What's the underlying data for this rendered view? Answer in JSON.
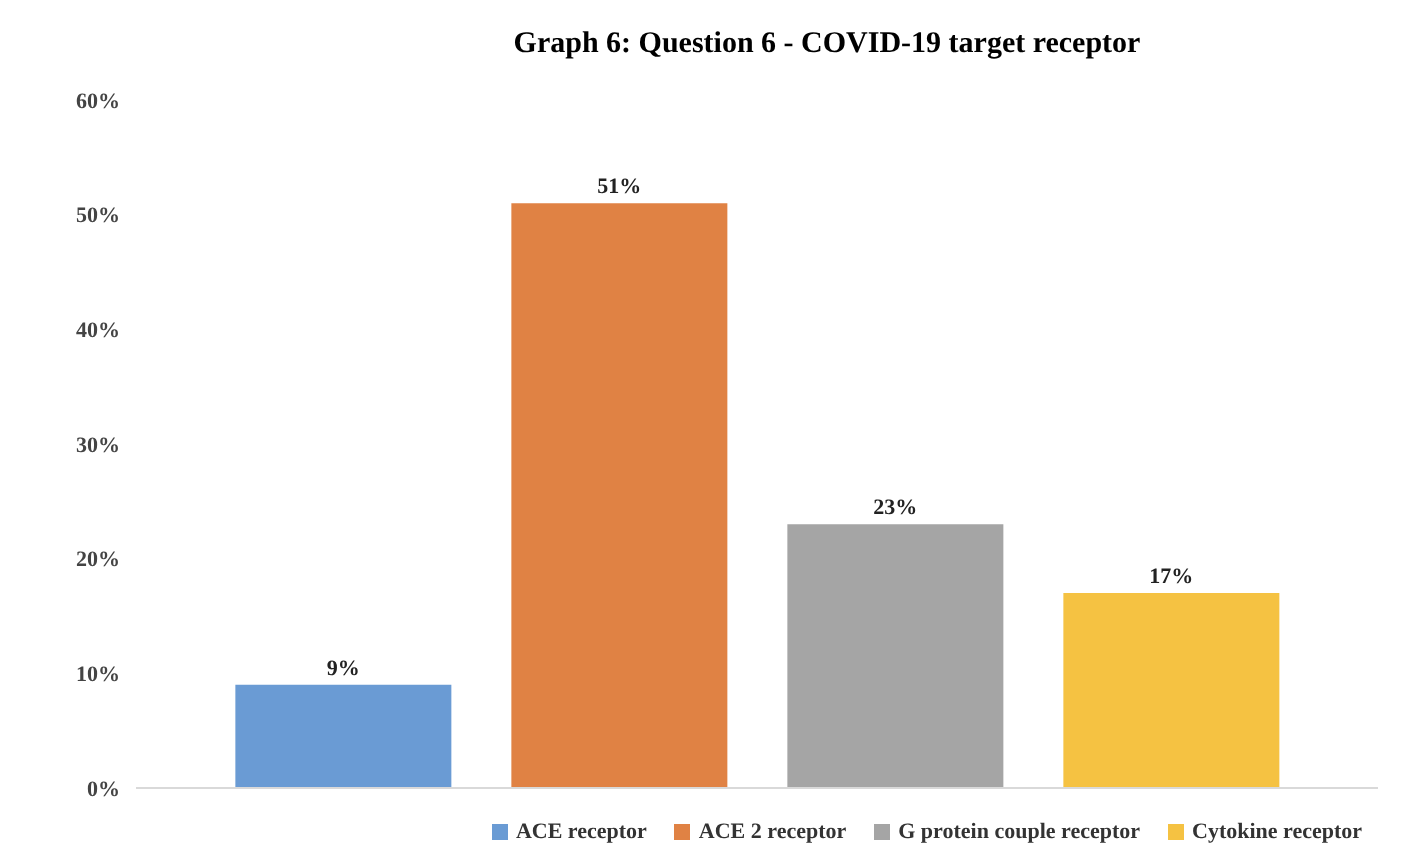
{
  "chart_data": {
    "type": "bar",
    "title": "Graph 6: Question 6 - COVID-19 target receptor",
    "categories": [
      null
    ],
    "series": [
      {
        "name": "ACE receptor",
        "color": "#6a9bd4",
        "values": [
          9
        ],
        "value_labels": [
          "9%"
        ]
      },
      {
        "name": "ACE 2 receptor",
        "color": "#e08244",
        "values": [
          51
        ],
        "value_labels": [
          "51%"
        ]
      },
      {
        "name": "G protein couple receptor",
        "color": "#a5a5a5",
        "values": [
          23
        ],
        "value_labels": [
          "23%"
        ]
      },
      {
        "name": "Cytokine receptor",
        "color": "#f5c242",
        "values": [
          17
        ],
        "value_labels": [
          "17%"
        ]
      }
    ],
    "ylim": [
      0,
      60
    ],
    "yticks": [
      {
        "value": 0,
        "label": "0%"
      },
      {
        "value": 10,
        "label": "10%"
      },
      {
        "value": 20,
        "label": "20%"
      },
      {
        "value": 30,
        "label": "30%"
      },
      {
        "value": 40,
        "label": "40%"
      },
      {
        "value": 50,
        "label": "50%"
      },
      {
        "value": 60,
        "label": "60%"
      }
    ],
    "legend": "bottom"
  }
}
